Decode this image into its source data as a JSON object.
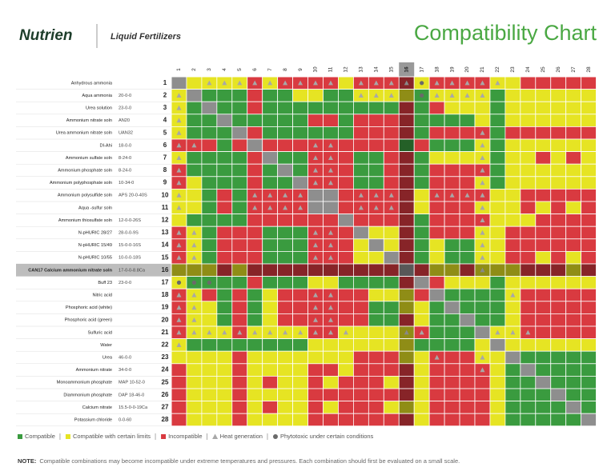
{
  "header": {
    "brand": "Nutrien",
    "subtitle": "Liquid Fertilizers",
    "title": "Compatibility Chart"
  },
  "colors": {
    "G": "#3a9b3f",
    "Y": "#e6e423",
    "R": "#d93a40",
    "N": "#8e8e8e",
    "heat": "#a8a8a8",
    "dot": "#6a6a6a"
  },
  "columns": [
    1,
    2,
    3,
    4,
    5,
    6,
    7,
    8,
    9,
    10,
    11,
    12,
    13,
    14,
    15,
    16,
    17,
    18,
    19,
    20,
    21,
    22,
    23,
    24,
    25,
    26,
    27,
    28
  ],
  "rows": [
    {
      "num": 1,
      "name": "Anhydrous ammonia",
      "cells": [
        "N",
        "Y",
        "Y^",
        "Y^",
        "Y^",
        "R^",
        "Y^",
        "R^",
        "R^",
        "R^",
        "R^",
        "Y",
        "R^",
        "R^",
        "R^",
        "R^",
        "Yo",
        "R^",
        "R^",
        "R^",
        "R^",
        "Y^",
        "Y",
        "R",
        "R",
        "R",
        "R",
        "R"
      ]
    },
    {
      "num": 2,
      "name": "Aqua ammonia",
      "analysis": "20-0-0",
      "cells": [
        "Y^",
        "N",
        "G",
        "G",
        "G",
        "R",
        "G",
        "G",
        "Y",
        "Y",
        "G",
        "G",
        "Y^",
        "Y^",
        "Y^",
        "Y",
        "Go",
        "Y^",
        "Y^",
        "Y^",
        "Y^",
        "G",
        "Y",
        "Y",
        "Y",
        "Y",
        "Y",
        "Y"
      ]
    },
    {
      "num": 3,
      "name": "Urea solution",
      "analysis": "23-0-0",
      "cells": [
        "Y^",
        "G",
        "N",
        "G",
        "G",
        "R",
        "G",
        "G",
        "G",
        "G",
        "G",
        "G",
        "G",
        "G",
        "G",
        "R",
        "G",
        "R",
        "Y",
        "Y",
        "Y",
        "G",
        "Y",
        "Y",
        "Y",
        "Y",
        "Y",
        "Y"
      ]
    },
    {
      "num": 4,
      "name": "Ammonium nitrate soln",
      "analysis": "AN20",
      "cells": [
        "Y^",
        "G",
        "G",
        "N",
        "G",
        "G",
        "G",
        "G",
        "G",
        "R",
        "R",
        "G",
        "R",
        "R",
        "R",
        "R",
        "G",
        "G",
        "G",
        "G",
        "Y",
        "G",
        "Y",
        "Y",
        "Y",
        "Y",
        "Y",
        "Y"
      ]
    },
    {
      "num": 5,
      "name": "Urea ammonium nitrate soln",
      "analysis": "UAN32",
      "cells": [
        "Y^",
        "G",
        "G",
        "G",
        "N",
        "R",
        "G",
        "G",
        "G",
        "G",
        "G",
        "G",
        "R",
        "R",
        "R",
        "R",
        "G",
        "R",
        "R",
        "R",
        "R^",
        "G",
        "R",
        "R",
        "R",
        "R",
        "R",
        "R"
      ]
    },
    {
      "num": 6,
      "name": "DI-Ahi",
      "analysis": "18-0-0",
      "cells": [
        "R^",
        "R^",
        "R",
        "G",
        "R",
        "N",
        "R",
        "R",
        "R",
        "R^",
        "R^",
        "R",
        "R",
        "R",
        "R",
        "G",
        "R",
        "G",
        "G",
        "G",
        "Y^",
        "G",
        "Y",
        "Y",
        "Y",
        "Y",
        "Y",
        "Y"
      ]
    },
    {
      "num": 7,
      "name": "Ammonium sulfate soln",
      "analysis": "8-24-0",
      "cells": [
        "Y^",
        "G",
        "G",
        "G",
        "G",
        "R",
        "N",
        "G",
        "G",
        "R^",
        "R^",
        "R",
        "G",
        "G",
        "R",
        "R",
        "G",
        "Y",
        "Y",
        "Y",
        "Y^",
        "G",
        "Y",
        "Y",
        "R",
        "Y",
        "R",
        "Y"
      ]
    },
    {
      "num": 8,
      "name": "Ammonium phosphate soln",
      "analysis": "8-24-0",
      "cells": [
        "R^",
        "G",
        "G",
        "G",
        "G",
        "R",
        "G",
        "N",
        "G",
        "R^",
        "R^",
        "R",
        "G",
        "G",
        "R",
        "R",
        "G",
        "R",
        "R",
        "R",
        "R^",
        "G",
        "Y",
        "Y",
        "Y",
        "Y",
        "Y",
        "Y"
      ]
    },
    {
      "num": 9,
      "name": "Ammonium polyphosphate soln",
      "analysis": "10-34-0",
      "cells": [
        "R^",
        "Y",
        "G",
        "G",
        "G",
        "R",
        "G",
        "G",
        "N",
        "R^",
        "R^",
        "R",
        "G",
        "G",
        "R",
        "R",
        "G",
        "R",
        "R",
        "R",
        "Y^",
        "G",
        "Y",
        "Y",
        "Y",
        "Y",
        "Y",
        "Y"
      ]
    },
    {
      "num": 10,
      "name": "Ammonium polysulfide soln",
      "analysis": "APS 20-0-40S",
      "cells": [
        "Y^",
        "Y",
        "G",
        "R",
        "G",
        "R^",
        "R^",
        "R^",
        "R^",
        "N",
        "N",
        "R",
        "R^",
        "R^",
        "R^",
        "R",
        "Y",
        "R^",
        "R^",
        "R^",
        "R^",
        "Y",
        "Y",
        "R",
        "R",
        "R",
        "R",
        "R"
      ]
    },
    {
      "num": 11,
      "name": "Aqua -sulfur soln",
      "cells": [
        "Y^",
        "Y",
        "G",
        "R",
        "G",
        "R^",
        "R^",
        "R^",
        "R^",
        "N",
        "N",
        "R",
        "R^",
        "R^",
        "R^",
        "R",
        "Y",
        "R",
        "R",
        "R",
        "Y^",
        "Y",
        "Y",
        "R",
        "Y",
        "R",
        "Y",
        "R"
      ]
    },
    {
      "num": 12,
      "name": "Ammonium thiosulfate soln",
      "analysis": "12-0-0-26S",
      "cells": [
        "Y",
        "G",
        "G",
        "G",
        "G",
        "R",
        "R",
        "R",
        "R",
        "R",
        "R",
        "N",
        "R",
        "R",
        "R",
        "R",
        "G",
        "R",
        "R",
        "R",
        "R^",
        "Y",
        "Y",
        "Y",
        "R",
        "R",
        "R",
        "R"
      ]
    },
    {
      "num": 13,
      "name": "N-pHURIC 28/27",
      "analysis": "28-0-0-9S",
      "cells": [
        "R^",
        "Y^",
        "G",
        "R",
        "R",
        "R",
        "G",
        "G",
        "G",
        "R^",
        "R^",
        "R",
        "N",
        "Y",
        "Y",
        "R",
        "G",
        "R",
        "R",
        "R",
        "Y^",
        "Y",
        "R",
        "R",
        "R",
        "R",
        "R",
        "R"
      ]
    },
    {
      "num": 14,
      "name": "N-pHURIC 15/49",
      "analysis": "15-0-0-16S",
      "cells": [
        "R^",
        "Y^",
        "G",
        "R",
        "R",
        "R",
        "G",
        "G",
        "G",
        "R^",
        "R^",
        "R",
        "Y",
        "N",
        "Y",
        "R",
        "G",
        "Y",
        "G",
        "G",
        "Y^",
        "Y",
        "R",
        "R",
        "R",
        "R",
        "R",
        "R"
      ]
    },
    {
      "num": 15,
      "name": "N-pHURIC 10/55",
      "analysis": "10-0-0-18S",
      "cells": [
        "R^",
        "Y^",
        "G",
        "R",
        "R",
        "R",
        "G",
        "G",
        "G",
        "R^",
        "R^",
        "R",
        "Y",
        "Y",
        "N",
        "R",
        "G",
        "Y",
        "G",
        "G",
        "Y^",
        "Y",
        "R",
        "R",
        "Y",
        "R",
        "Y",
        "R"
      ]
    },
    {
      "num": 16,
      "name": "CAN17 Calcium ammonium nitrate soln",
      "analysis": "17-0-0-8.8Ca",
      "highlight": true,
      "cells": [
        "Y",
        "Y",
        "Y",
        "R",
        "Y",
        "R",
        "R",
        "R",
        "R",
        "R",
        "R",
        "R",
        "R",
        "R",
        "R",
        "N",
        "R",
        "Y",
        "Y",
        "R",
        "Y^",
        "Y",
        "Y",
        "R",
        "R",
        "R",
        "Y",
        "R"
      ]
    },
    {
      "num": 17,
      "name": "Buff 23",
      "analysis": "23-0-0",
      "cells": [
        "Yo",
        "Go",
        "Go",
        "G",
        "G",
        "R",
        "G",
        "G",
        "G",
        "Y",
        "Y",
        "G",
        "G",
        "G",
        "G",
        "R",
        "N",
        "R",
        "Y",
        "Y",
        "Y",
        "G",
        "Y",
        "Y",
        "Y",
        "Y",
        "Y",
        "Y"
      ]
    },
    {
      "num": 18,
      "name": "Nitric acid",
      "cells": [
        "R^",
        "Y^",
        "R",
        "G",
        "R",
        "G",
        "Y",
        "R",
        "R",
        "R^",
        "R^",
        "R",
        "R",
        "Y",
        "Y",
        "Y",
        "R",
        "N",
        "G",
        "G",
        "G",
        "G",
        "Y^",
        "R",
        "R",
        "R",
        "R",
        "R"
      ]
    },
    {
      "num": 19,
      "name": "Phosphoric acid (white)",
      "cells": [
        "R^",
        "Y^",
        "Y",
        "G",
        "R",
        "G",
        "Y",
        "R",
        "R",
        "R^",
        "R^",
        "R",
        "R",
        "G",
        "G",
        "Y",
        "Y",
        "G",
        "N",
        "G",
        "G",
        "G",
        "Y",
        "R",
        "R",
        "R",
        "R",
        "R"
      ]
    },
    {
      "num": 20,
      "name": "Phosphoric acid (green)",
      "cells": [
        "R^",
        "Y^",
        "Y",
        "G",
        "R",
        "G",
        "Y",
        "R",
        "R",
        "R^",
        "R^",
        "R",
        "R",
        "G",
        "G",
        "R",
        "Y",
        "G",
        "G",
        "N",
        "G",
        "G",
        "Y",
        "R",
        "R",
        "R",
        "R",
        "R"
      ]
    },
    {
      "num": 21,
      "name": "Sulfuric acid",
      "cells": [
        "R^",
        "Y^",
        "Y^",
        "Y^",
        "R^",
        "Y^",
        "Y^",
        "Y^",
        "Y^",
        "R^",
        "R^",
        "Y^",
        "Y",
        "Y",
        "Y",
        "Y^",
        "R^",
        "G",
        "G",
        "G",
        "N",
        "Y^",
        "Y^",
        "R^",
        "R",
        "R",
        "R",
        "R"
      ]
    },
    {
      "num": 22,
      "name": "Water",
      "cells": [
        "Y^",
        "G",
        "G",
        "G",
        "G",
        "G",
        "G",
        "G",
        "G",
        "Y",
        "Y",
        "Y",
        "Y",
        "Y",
        "Y",
        "Y",
        "G",
        "G",
        "G",
        "G",
        "Y",
        "N",
        "Y",
        "Y",
        "Y",
        "Y",
        "Y",
        "Y"
      ]
    },
    {
      "num": 23,
      "name": "Urea",
      "analysis": "46-0-0",
      "cells": [
        "Y",
        "Y",
        "Y",
        "Y",
        "R",
        "Y",
        "Y",
        "Y",
        "Y",
        "Y",
        "Y",
        "Y",
        "R",
        "R",
        "R",
        "Y",
        "Y",
        "R^",
        "R",
        "R",
        "Y^",
        "Y",
        "N",
        "G",
        "G",
        "G",
        "G",
        "G"
      ]
    },
    {
      "num": 24,
      "name": "Ammonium nitrate",
      "analysis": "34-0-0",
      "cells": [
        "R",
        "Y",
        "Y",
        "Y",
        "R",
        "Y",
        "Y",
        "Y",
        "Y",
        "R",
        "R",
        "Y",
        "R",
        "R",
        "R",
        "R",
        "Y",
        "R",
        "R",
        "R",
        "R^",
        "Y",
        "G",
        "N",
        "G",
        "G",
        "G",
        "G"
      ]
    },
    {
      "num": 25,
      "name": "Monoammonium phosphate",
      "analysis": "MAP 10-52-0",
      "cells": [
        "R",
        "Y",
        "Y",
        "Y",
        "R",
        "Y",
        "R",
        "Y",
        "Y",
        "R",
        "Y",
        "R",
        "R",
        "R",
        "Y",
        "R",
        "Y",
        "R",
        "R",
        "R",
        "R",
        "Y",
        "G",
        "G",
        "N",
        "G",
        "G",
        "G"
      ]
    },
    {
      "num": 26,
      "name": "Diammonium phosphate",
      "analysis": "DAP 18-46-0",
      "cells": [
        "R",
        "Y",
        "Y",
        "Y",
        "R",
        "Y",
        "Y",
        "Y",
        "Y",
        "R",
        "R",
        "R",
        "R",
        "R",
        "R",
        "R",
        "Y",
        "R",
        "R",
        "R",
        "R",
        "Y",
        "G",
        "G",
        "G",
        "N",
        "G",
        "G"
      ]
    },
    {
      "num": 27,
      "name": "Calcium nitrate",
      "analysis": "15.5-0-0-19Ca",
      "cells": [
        "R",
        "Y",
        "Y",
        "Y",
        "R",
        "Y",
        "R",
        "Y",
        "Y",
        "R",
        "Y",
        "R",
        "R",
        "R",
        "Y",
        "Y",
        "Y",
        "R",
        "R",
        "R",
        "R",
        "Y",
        "G",
        "G",
        "G",
        "G",
        "N",
        "G"
      ]
    },
    {
      "num": 28,
      "name": "Potassium chloride",
      "analysis": "0-0-60",
      "cells": [
        "R",
        "Y",
        "Y",
        "Y",
        "R",
        "Y",
        "Y",
        "Y",
        "Y",
        "R",
        "R",
        "R",
        "R",
        "R",
        "R",
        "R",
        "Y",
        "R",
        "R",
        "R",
        "R",
        "Y",
        "G",
        "G",
        "G",
        "G",
        "G",
        "N"
      ]
    }
  ],
  "legend": [
    {
      "label": "Compatible",
      "swatch": "G"
    },
    {
      "label": "Compatible with certain limits",
      "swatch": "Y"
    },
    {
      "label": "Incompatible",
      "swatch": "R"
    },
    {
      "label": "Heat generation",
      "swatch": "heat"
    },
    {
      "label": "Phytotoxic under certain conditions",
      "swatch": "dot"
    }
  ],
  "note": {
    "label": "NOTE:",
    "text": "Compatible combinations may become incompatible under extreme temperatures and pressures. Each combination should first be evaluated on a small scale."
  }
}
